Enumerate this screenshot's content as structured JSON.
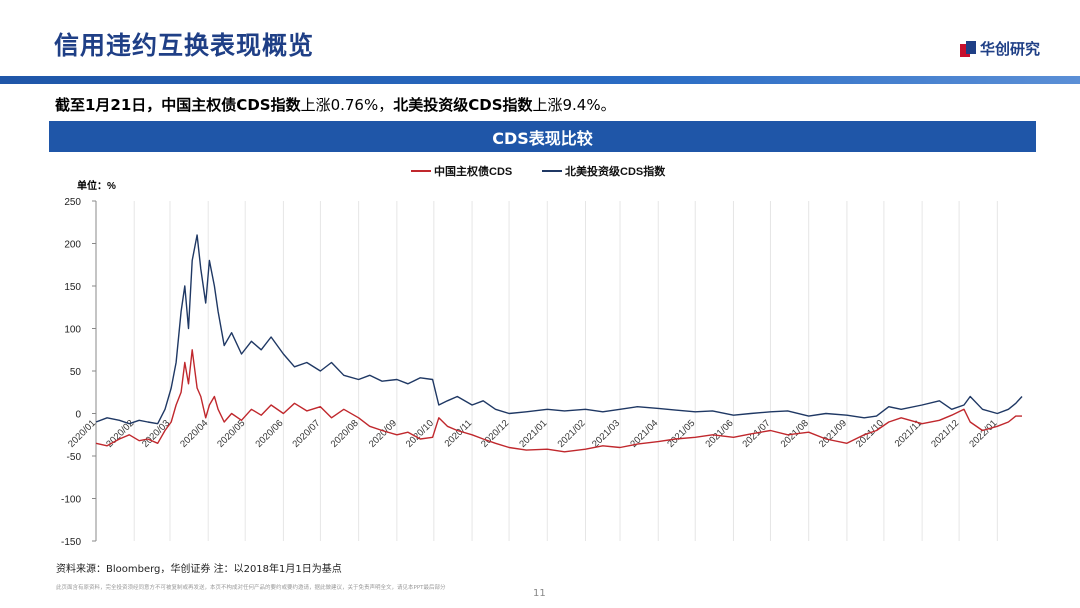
{
  "header": {
    "title": "信用违约互换表现概览",
    "logo_text": "华创研究"
  },
  "summary": {
    "part1_bold": "截至1月21日，中国主权债CDS指数",
    "part1": "上涨0.76%，",
    "part2_bold": "北美投资级CDS指数",
    "part2": "上涨9.4%。"
  },
  "banner": {
    "title": "CDS表现比较"
  },
  "footer": {
    "source": "资料来源：Bloomberg，华创证券 注：以2018年1月1日为基点",
    "disclaimer": "此页面含有原资料，完全投资须经同意方不可被复制或再发送，本页不构成对任何产品的要约或要约邀请，据此做建议，关于免责声明全文，请见本PPT最后部分",
    "page": "11"
  },
  "colors": {
    "china": "#c0282d",
    "na": "#1f3864",
    "accent": "#1f56a8"
  },
  "chart_data": {
    "type": "line",
    "unit_label": "单位：%",
    "ylim": [
      -150,
      250
    ],
    "yticks": [
      -150,
      -100,
      -50,
      0,
      50,
      100,
      150,
      200,
      250
    ],
    "xlim": [
      "2020-01-01",
      "2022-01-21"
    ],
    "xticks": [
      "2020/01",
      "2020/02",
      "2020/03",
      "2020/04",
      "2020/05",
      "2020/06",
      "2020/07",
      "2020/08",
      "2020/09",
      "2020/10",
      "2020/11",
      "2020/12",
      "2021/01",
      "2021/02",
      "2021/03",
      "2021/04",
      "2021/05",
      "2021/06",
      "2021/07",
      "2021/08",
      "2021/09",
      "2021/10",
      "2021/11",
      "2021/12",
      "2022/01"
    ],
    "legend_position": "top-center",
    "grid": "vertical",
    "series": [
      {
        "name": "中国主权债CDS",
        "color": "#c0282d",
        "points": [
          [
            "2020-01-01",
            -35
          ],
          [
            "2020-01-10",
            -38
          ],
          [
            "2020-01-20",
            -30
          ],
          [
            "2020-01-28",
            -25
          ],
          [
            "2020-02-05",
            -32
          ],
          [
            "2020-02-12",
            -30
          ],
          [
            "2020-02-20",
            -35
          ],
          [
            "2020-02-26",
            -20
          ],
          [
            "2020-03-02",
            -10
          ],
          [
            "2020-03-06",
            10
          ],
          [
            "2020-03-10",
            25
          ],
          [
            "2020-03-13",
            60
          ],
          [
            "2020-03-16",
            35
          ],
          [
            "2020-03-19",
            75
          ],
          [
            "2020-03-23",
            30
          ],
          [
            "2020-03-26",
            20
          ],
          [
            "2020-03-30",
            -5
          ],
          [
            "2020-04-02",
            10
          ],
          [
            "2020-04-06",
            20
          ],
          [
            "2020-04-09",
            5
          ],
          [
            "2020-04-14",
            -10
          ],
          [
            "2020-04-20",
            0
          ],
          [
            "2020-04-28",
            -8
          ],
          [
            "2020-05-06",
            5
          ],
          [
            "2020-05-14",
            -2
          ],
          [
            "2020-05-22",
            10
          ],
          [
            "2020-06-01",
            0
          ],
          [
            "2020-06-10",
            12
          ],
          [
            "2020-06-20",
            3
          ],
          [
            "2020-07-01",
            8
          ],
          [
            "2020-07-10",
            -5
          ],
          [
            "2020-07-20",
            5
          ],
          [
            "2020-08-01",
            -5
          ],
          [
            "2020-08-10",
            -15
          ],
          [
            "2020-08-20",
            -20
          ],
          [
            "2020-09-01",
            -25
          ],
          [
            "2020-09-10",
            -22
          ],
          [
            "2020-09-20",
            -30
          ],
          [
            "2020-09-30",
            -28
          ],
          [
            "2020-10-05",
            -5
          ],
          [
            "2020-10-12",
            -15
          ],
          [
            "2020-10-20",
            -20
          ],
          [
            "2020-11-01",
            -25
          ],
          [
            "2020-11-10",
            -30
          ],
          [
            "2020-11-20",
            -35
          ],
          [
            "2020-12-01",
            -40
          ],
          [
            "2020-12-15",
            -43
          ],
          [
            "2021-01-01",
            -42
          ],
          [
            "2021-01-15",
            -45
          ],
          [
            "2021-02-01",
            -42
          ],
          [
            "2021-02-15",
            -38
          ],
          [
            "2021-03-01",
            -40
          ],
          [
            "2021-03-15",
            -36
          ],
          [
            "2021-04-01",
            -33
          ],
          [
            "2021-04-15",
            -30
          ],
          [
            "2021-05-01",
            -28
          ],
          [
            "2021-05-15",
            -25
          ],
          [
            "2021-06-01",
            -28
          ],
          [
            "2021-06-15",
            -24
          ],
          [
            "2021-07-01",
            -20
          ],
          [
            "2021-07-15",
            -25
          ],
          [
            "2021-08-01",
            -22
          ],
          [
            "2021-08-15",
            -30
          ],
          [
            "2021-09-01",
            -35
          ],
          [
            "2021-09-15",
            -25
          ],
          [
            "2021-09-25",
            -20
          ],
          [
            "2021-10-05",
            -10
          ],
          [
            "2021-10-15",
            -5
          ],
          [
            "2021-11-01",
            -12
          ],
          [
            "2021-11-15",
            -8
          ],
          [
            "2021-11-25",
            -2
          ],
          [
            "2021-12-05",
            5
          ],
          [
            "2021-12-10",
            -10
          ],
          [
            "2021-12-20",
            -20
          ],
          [
            "2022-01-01",
            -15
          ],
          [
            "2022-01-10",
            -10
          ],
          [
            "2022-01-16",
            -3
          ],
          [
            "2022-01-21",
            -3
          ]
        ]
      },
      {
        "name": "北美投资级CDS指数",
        "color": "#1f3864",
        "points": [
          [
            "2020-01-01",
            -10
          ],
          [
            "2020-01-10",
            -5
          ],
          [
            "2020-01-20",
            -8
          ],
          [
            "2020-01-28",
            -12
          ],
          [
            "2020-02-05",
            -8
          ],
          [
            "2020-02-12",
            -10
          ],
          [
            "2020-02-20",
            -12
          ],
          [
            "2020-02-26",
            5
          ],
          [
            "2020-03-02",
            30
          ],
          [
            "2020-03-06",
            60
          ],
          [
            "2020-03-10",
            120
          ],
          [
            "2020-03-13",
            150
          ],
          [
            "2020-03-16",
            100
          ],
          [
            "2020-03-19",
            180
          ],
          [
            "2020-03-23",
            210
          ],
          [
            "2020-03-26",
            170
          ],
          [
            "2020-03-30",
            130
          ],
          [
            "2020-04-02",
            180
          ],
          [
            "2020-04-06",
            150
          ],
          [
            "2020-04-09",
            120
          ],
          [
            "2020-04-14",
            80
          ],
          [
            "2020-04-20",
            95
          ],
          [
            "2020-04-28",
            70
          ],
          [
            "2020-05-06",
            85
          ],
          [
            "2020-05-14",
            75
          ],
          [
            "2020-05-22",
            90
          ],
          [
            "2020-06-01",
            70
          ],
          [
            "2020-06-10",
            55
          ],
          [
            "2020-06-20",
            60
          ],
          [
            "2020-07-01",
            50
          ],
          [
            "2020-07-10",
            60
          ],
          [
            "2020-07-20",
            45
          ],
          [
            "2020-08-01",
            40
          ],
          [
            "2020-08-10",
            45
          ],
          [
            "2020-08-20",
            38
          ],
          [
            "2020-09-01",
            40
          ],
          [
            "2020-09-10",
            35
          ],
          [
            "2020-09-20",
            42
          ],
          [
            "2020-09-30",
            40
          ],
          [
            "2020-10-05",
            10
          ],
          [
            "2020-10-12",
            15
          ],
          [
            "2020-10-20",
            20
          ],
          [
            "2020-11-01",
            10
          ],
          [
            "2020-11-10",
            15
          ],
          [
            "2020-11-20",
            5
          ],
          [
            "2020-12-01",
            0
          ],
          [
            "2020-12-15",
            2
          ],
          [
            "2021-01-01",
            5
          ],
          [
            "2021-01-15",
            3
          ],
          [
            "2021-02-01",
            5
          ],
          [
            "2021-02-15",
            2
          ],
          [
            "2021-03-01",
            5
          ],
          [
            "2021-03-15",
            8
          ],
          [
            "2021-04-01",
            6
          ],
          [
            "2021-04-15",
            4
          ],
          [
            "2021-05-01",
            2
          ],
          [
            "2021-05-15",
            3
          ],
          [
            "2021-06-01",
            -2
          ],
          [
            "2021-06-15",
            0
          ],
          [
            "2021-07-01",
            2
          ],
          [
            "2021-07-15",
            3
          ],
          [
            "2021-08-01",
            -3
          ],
          [
            "2021-08-15",
            0
          ],
          [
            "2021-09-01",
            -2
          ],
          [
            "2021-09-15",
            -5
          ],
          [
            "2021-09-25",
            -3
          ],
          [
            "2021-10-05",
            8
          ],
          [
            "2021-10-15",
            5
          ],
          [
            "2021-11-01",
            10
          ],
          [
            "2021-11-15",
            15
          ],
          [
            "2021-11-25",
            5
          ],
          [
            "2021-12-05",
            10
          ],
          [
            "2021-12-10",
            20
          ],
          [
            "2021-12-20",
            5
          ],
          [
            "2022-01-01",
            0
          ],
          [
            "2022-01-10",
            5
          ],
          [
            "2022-01-16",
            12
          ],
          [
            "2022-01-21",
            20
          ]
        ]
      }
    ]
  }
}
